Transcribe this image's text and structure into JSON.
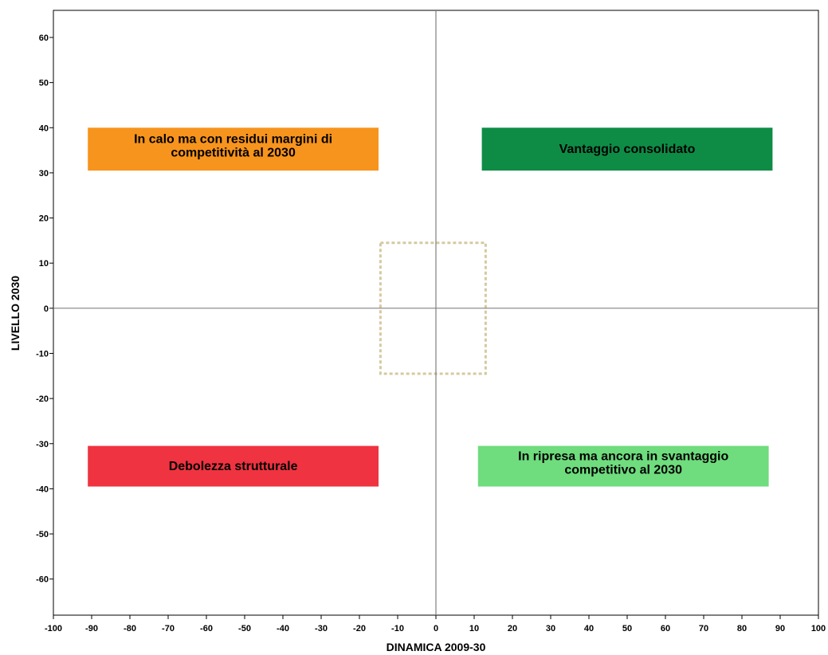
{
  "chart_data": {
    "type": "quadrant",
    "title": "",
    "xlabel": "DINAMICA 2009-30",
    "ylabel": "LIVELLO 2030",
    "xlim": [
      -100,
      100
    ],
    "ylim": [
      -68,
      66
    ],
    "x_ticks": [
      -100,
      -90,
      -80,
      -70,
      -60,
      -50,
      -40,
      -30,
      -20,
      -10,
      0,
      10,
      20,
      30,
      40,
      50,
      60,
      70,
      80,
      90,
      100
    ],
    "y_ticks": [
      -60,
      -50,
      -40,
      -30,
      -20,
      -10,
      0,
      10,
      20,
      30,
      40,
      50,
      60
    ],
    "grid": false,
    "reference_lines": {
      "x": 0,
      "y": 0
    },
    "neutral_zone": {
      "x": [
        -14.5,
        13
      ],
      "y": [
        -14.5,
        14.5
      ],
      "color": "#d6c9a0",
      "style": "dashed"
    },
    "regions": [
      {
        "lines": [
          "In calo ma con residui margini di",
          "competitività al 2030"
        ],
        "x": [
          -91,
          -15
        ],
        "y": [
          30.5,
          40
        ],
        "color": "#f7941d"
      },
      {
        "lines": [
          "Vantaggio consolidato"
        ],
        "x": [
          12,
          88
        ],
        "y": [
          30.5,
          40
        ],
        "color": "#0e8c46"
      },
      {
        "lines": [
          "Debolezza strutturale"
        ],
        "x": [
          -91,
          -15
        ],
        "y": [
          -39.5,
          -30.5
        ],
        "color": "#ef3340"
      },
      {
        "lines": [
          "In ripresa ma ancora in svantaggio",
          "competitivo al 2030"
        ],
        "x": [
          11,
          87
        ],
        "y": [
          -39.5,
          -30.5
        ],
        "color": "#6fdc7e"
      }
    ]
  }
}
